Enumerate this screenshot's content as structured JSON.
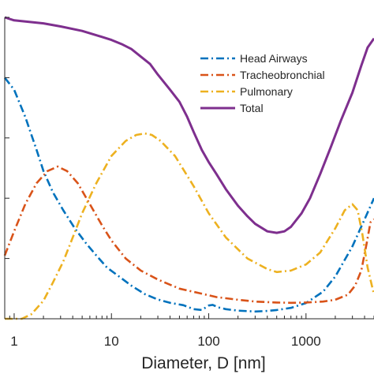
{
  "chart_data": {
    "type": "line",
    "xlabel": "Diameter, D [nm]",
    "ylabel": "",
    "x_scale": "log",
    "xlim": [
      0.8,
      5000
    ],
    "ylim": [
      0,
      1
    ],
    "x_ticks": [
      1,
      10,
      100,
      1000
    ],
    "x_tick_labels": [
      "1",
      "10",
      "100",
      "1000"
    ],
    "grid": false,
    "legend_position": "top-right",
    "series": [
      {
        "name": "Head Airways",
        "color": "#0072BD",
        "dash": "dash-dot",
        "x": [
          0.8,
          1.0,
          1.3,
          1.7,
          2.0,
          2.5,
          3.2,
          4.2,
          5.5,
          7.0,
          9.0,
          12,
          16,
          22,
          30,
          40,
          55,
          70,
          85,
          100,
          110,
          125,
          150,
          200,
          300,
          400,
          500,
          700,
          1000,
          1500,
          2000,
          3000,
          4000,
          5000
        ],
        "y": [
          0.8,
          0.76,
          0.67,
          0.56,
          0.49,
          0.42,
          0.36,
          0.3,
          0.25,
          0.21,
          0.17,
          0.14,
          0.11,
          0.082,
          0.064,
          0.053,
          0.045,
          0.032,
          0.029,
          0.044,
          0.046,
          0.038,
          0.032,
          0.027,
          0.024,
          0.026,
          0.029,
          0.036,
          0.052,
          0.09,
          0.14,
          0.24,
          0.33,
          0.4
        ]
      },
      {
        "name": "Tracheobronchial",
        "color": "#D95319",
        "dash": "dash-dot",
        "x": [
          0.8,
          1.0,
          1.3,
          1.7,
          2.2,
          2.8,
          3.5,
          4.5,
          6.0,
          8.0,
          10,
          14,
          20,
          30,
          50,
          80,
          120,
          200,
          300,
          500,
          700,
          1000,
          1500,
          2000,
          2700,
          3200,
          3700,
          4200,
          4600,
          5000
        ],
        "y": [
          0.21,
          0.29,
          0.38,
          0.45,
          0.49,
          0.505,
          0.49,
          0.45,
          0.38,
          0.31,
          0.26,
          0.2,
          0.16,
          0.13,
          0.1,
          0.085,
          0.072,
          0.063,
          0.057,
          0.054,
          0.053,
          0.054,
          0.057,
          0.063,
          0.08,
          0.11,
          0.16,
          0.25,
          0.32,
          0.33
        ]
      },
      {
        "name": "Pulmonary",
        "color": "#EDB120",
        "dash": "dash-dot",
        "x": [
          0.8,
          1.2,
          1.5,
          2.0,
          2.5,
          3.2,
          4.0,
          5.0,
          7.0,
          10,
          14,
          18,
          22,
          26,
          32,
          45,
          70,
          100,
          150,
          250,
          400,
          500,
          700,
          1000,
          1400,
          2000,
          2500,
          3000,
          3400,
          3800,
          4300,
          5000
        ],
        "y": [
          0.0,
          0.0,
          0.015,
          0.06,
          0.12,
          0.19,
          0.27,
          0.35,
          0.45,
          0.54,
          0.59,
          0.61,
          0.615,
          0.61,
          0.59,
          0.54,
          0.44,
          0.35,
          0.27,
          0.2,
          0.165,
          0.155,
          0.16,
          0.18,
          0.22,
          0.3,
          0.36,
          0.38,
          0.36,
          0.28,
          0.17,
          0.08
        ]
      },
      {
        "name": "Total",
        "color": "#7E2F8E",
        "dash": "solid",
        "x": [
          0.8,
          1.0,
          2.0,
          3.0,
          5.0,
          8.0,
          10,
          13,
          16,
          20,
          25,
          30,
          40,
          50,
          60,
          70,
          85,
          100,
          120,
          150,
          200,
          250,
          300,
          400,
          500,
          600,
          700,
          900,
          1100,
          1400,
          1800,
          2300,
          3000,
          3700,
          4300,
          5000
        ],
        "y": [
          1.0,
          0.99,
          0.98,
          0.97,
          0.955,
          0.935,
          0.925,
          0.91,
          0.895,
          0.87,
          0.845,
          0.81,
          0.76,
          0.72,
          0.67,
          0.62,
          0.56,
          0.52,
          0.48,
          0.43,
          0.375,
          0.34,
          0.315,
          0.29,
          0.285,
          0.29,
          0.305,
          0.35,
          0.4,
          0.48,
          0.57,
          0.66,
          0.75,
          0.84,
          0.9,
          0.93
        ]
      }
    ]
  }
}
